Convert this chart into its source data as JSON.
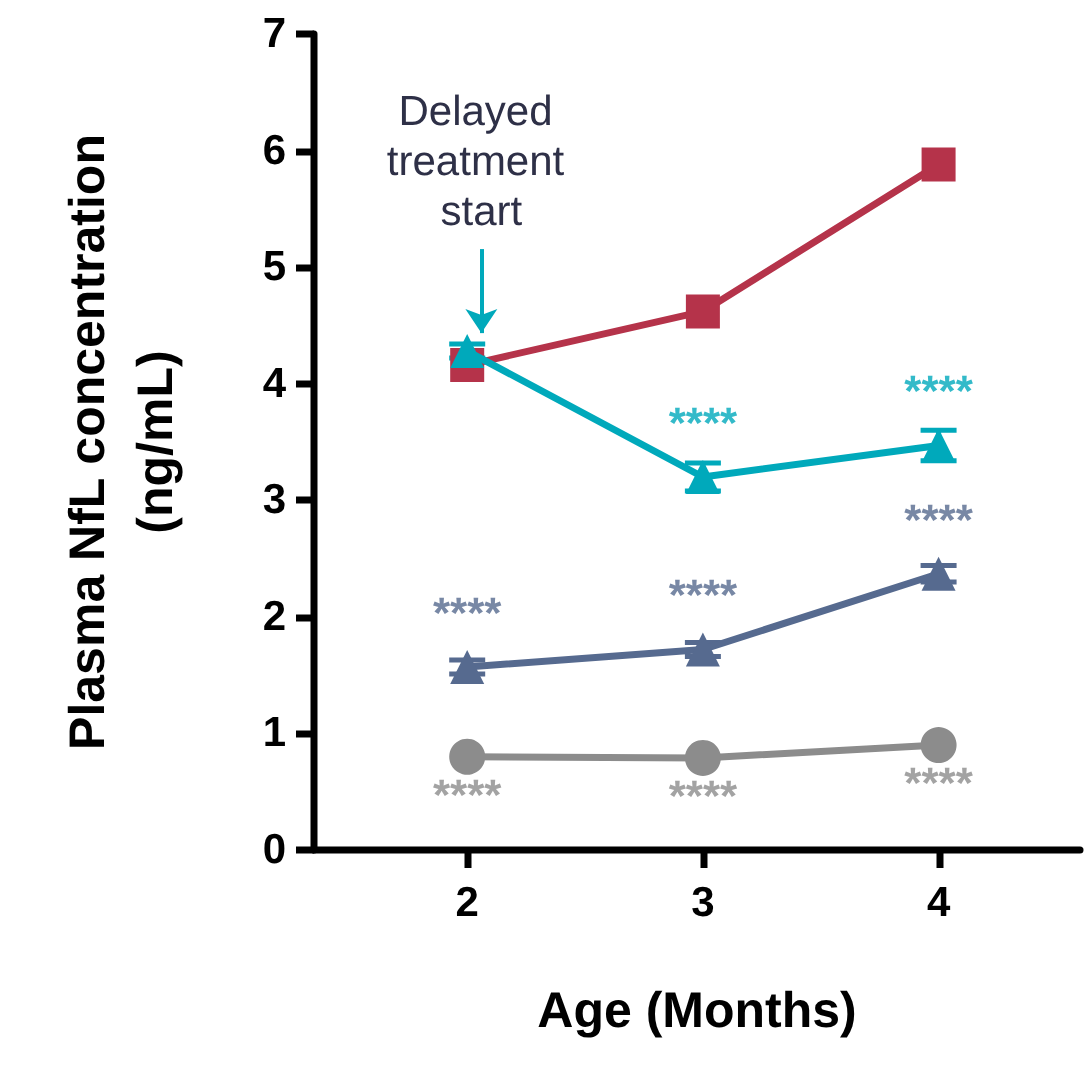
{
  "chart_data": {
    "type": "line",
    "xlabel": "Age (Months)",
    "ylabel": "Plasma NfL concentration (ng/mL)",
    "x": [
      2,
      3,
      4
    ],
    "xlim": [
      1.35,
      4.6
    ],
    "xticks": [
      2,
      3,
      4
    ],
    "ylim": [
      0,
      7
    ],
    "yticks": [
      0,
      1,
      2,
      3,
      4,
      5,
      6,
      7
    ],
    "grid": false,
    "line_style": "solid",
    "series": [
      {
        "color": "#8c8c8c",
        "marker": "circle",
        "values": [
          0.8,
          0.79,
          0.9
        ]
      },
      {
        "color": "#566a8f",
        "marker": "triangle",
        "values": [
          1.57,
          1.72,
          2.37
        ],
        "errors": [
          0.06,
          0.06,
          0.07
        ]
      },
      {
        "color": "#b5334a",
        "marker": "square",
        "values": [
          4.16,
          4.62,
          5.88
        ]
      },
      {
        "color": "#00a9bb",
        "marker": "triangle",
        "values": [
          4.28,
          3.2,
          3.47
        ],
        "errors": [
          0.06,
          0.12,
          0.13
        ]
      }
    ],
    "annotations": [
      {
        "text": "Delayed treatment start",
        "x": 2,
        "y": 4.28
      },
      {
        "text": "****",
        "x": 2,
        "y": 0.8
      },
      {
        "text": "****",
        "x": 3,
        "y": 0.79
      },
      {
        "text": "****",
        "x": 4,
        "y": 0.9
      },
      {
        "text": "****",
        "x": 2,
        "y": 1.57
      },
      {
        "text": "****",
        "x": 3,
        "y": 1.72
      },
      {
        "text": "****",
        "x": 4,
        "y": 2.37
      },
      {
        "text": "****",
        "x": 3,
        "y": 3.2
      },
      {
        "text": "****",
        "x": 4,
        "y": 3.47
      }
    ]
  }
}
